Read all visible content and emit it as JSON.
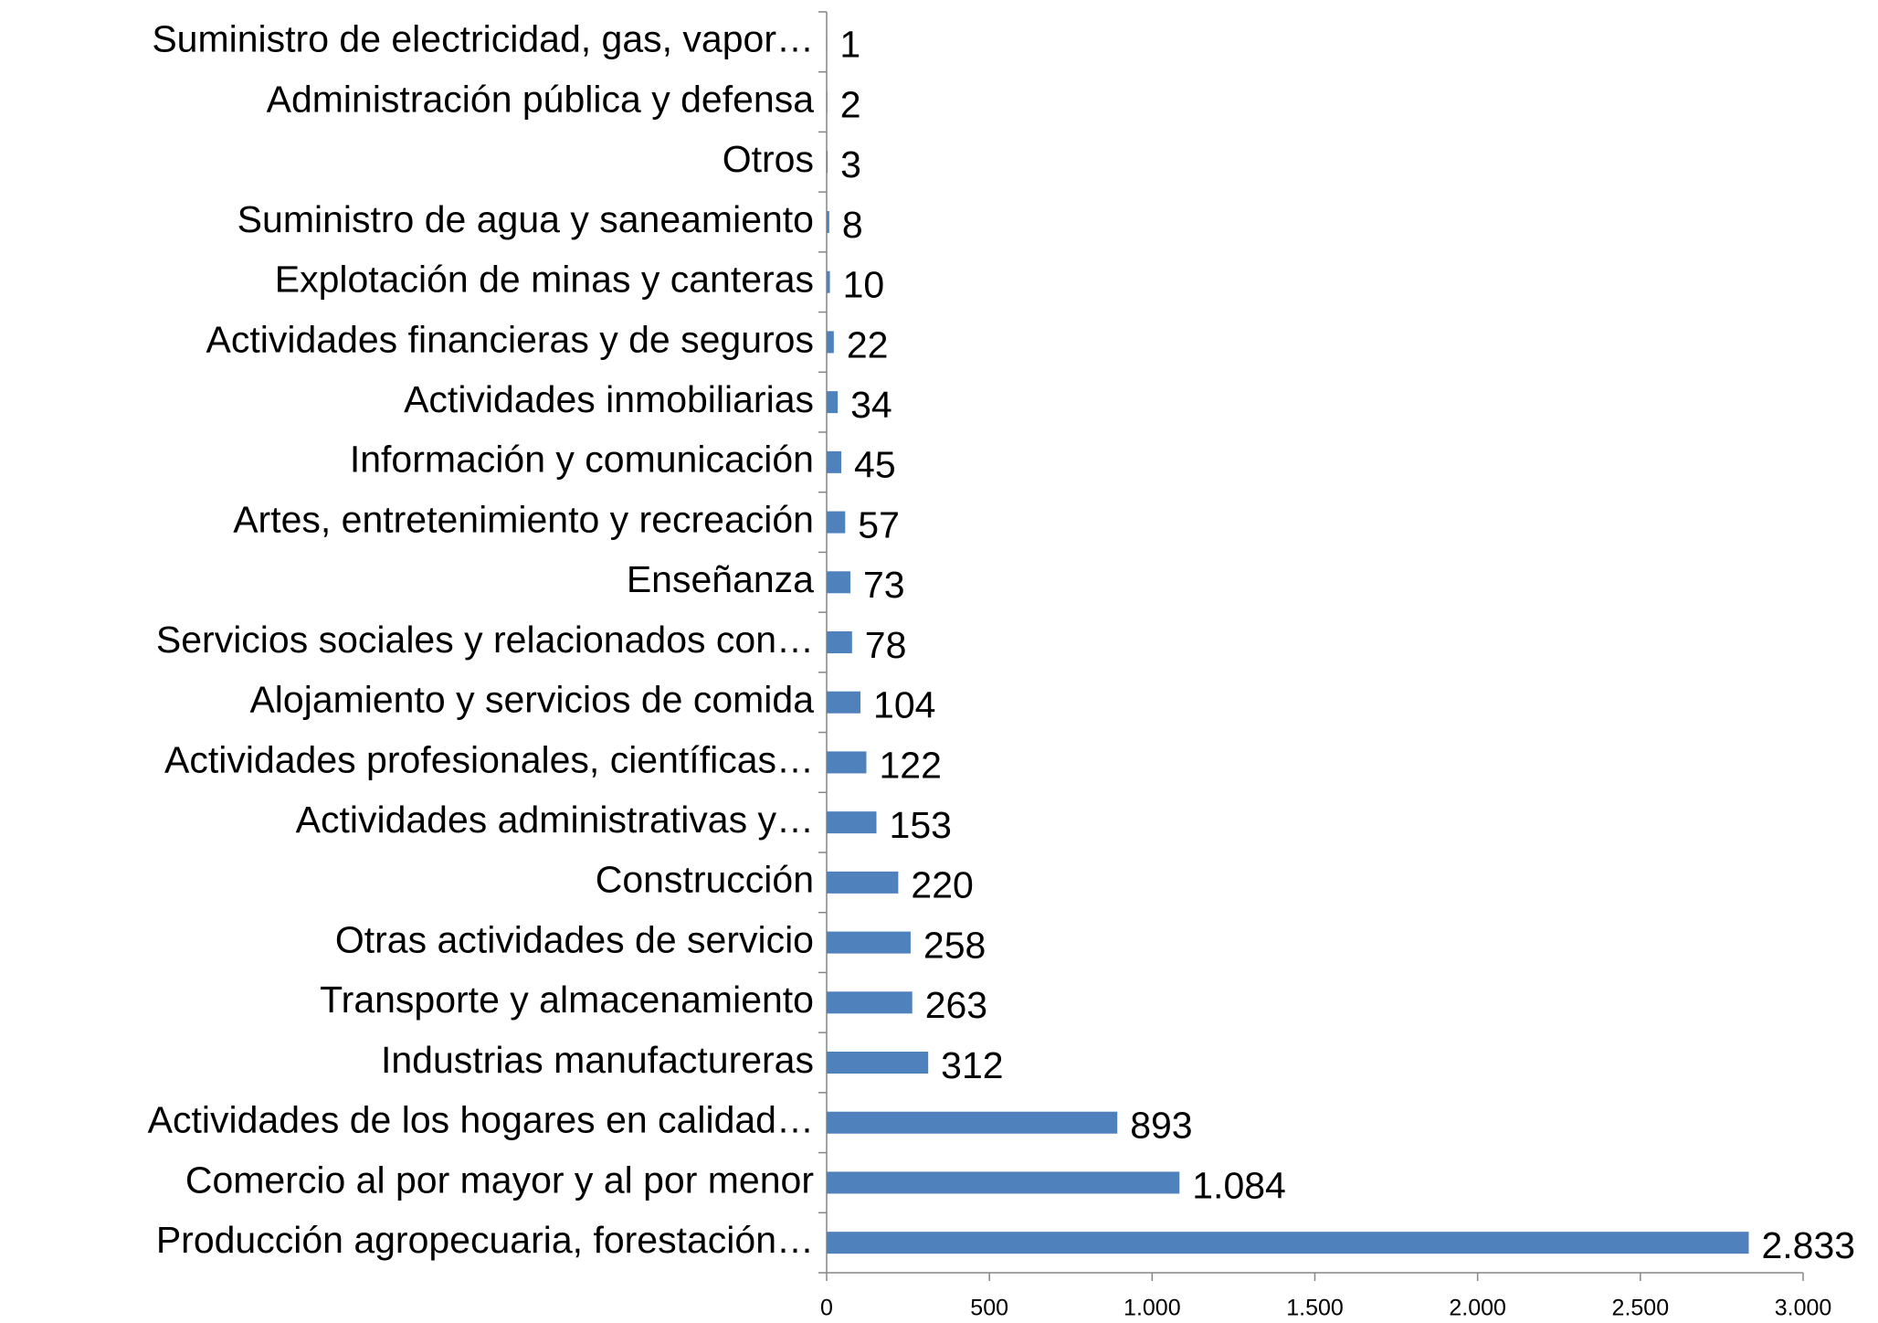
{
  "chart_data": {
    "type": "barh",
    "categories": [
      "Suministro de electricidad, gas, vapor…",
      "Administración pública y defensa",
      "Otros",
      "Suministro de agua y saneamiento",
      "Explotación de minas y canteras",
      "Actividades financieras y de seguros",
      "Actividades inmobiliarias",
      "Información y comunicación",
      "Artes, entretenimiento y recreación",
      "Enseñanza",
      "Servicios sociales y relacionados con…",
      "Alojamiento y servicios de comida",
      "Actividades profesionales, científicas…",
      "Actividades administrativas y…",
      "Construcción",
      "Otras actividades de servicio",
      "Transporte y almacenamiento",
      "Industrias manufactureras",
      "Actividades de los hogares en calidad…",
      "Comercio al por mayor y al por menor",
      "Producción agropecuaria, forestación…"
    ],
    "values": [
      1,
      2,
      3,
      8,
      10,
      22,
      34,
      45,
      57,
      73,
      78,
      104,
      122,
      153,
      220,
      258,
      263,
      312,
      893,
      1084,
      2833
    ],
    "value_labels": [
      "1",
      "2",
      "3",
      "8",
      "10",
      "22",
      "34",
      "45",
      "57",
      "73",
      "78",
      "104",
      "122",
      "153",
      "220",
      "258",
      "263",
      "312",
      "893",
      "1.084",
      "2.833"
    ],
    "color": "#4f81bd",
    "xlim": [
      0,
      3000
    ],
    "xticks": [
      0,
      500,
      {
        "value": 1000,
        "label": "1.000"
      },
      {
        "value": 1500,
        "label": "1.500"
      },
      {
        "value": 2000,
        "label": "2.000"
      },
      {
        "value": 2500,
        "label": "2.500"
      },
      {
        "value": 3000,
        "label": "3.000"
      }
    ]
  }
}
